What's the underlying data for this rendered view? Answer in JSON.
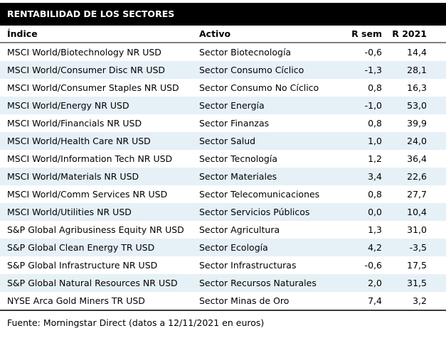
{
  "title": "RENTABILIDAD DE LOS SECTORES",
  "columns": {
    "indice": "Índice",
    "activo": "Activo",
    "r_sem": "R sem",
    "r_2021": "R 2021"
  },
  "footer": "Fuente: Morningstar Direct (datos a 12/11/2021 en euros)",
  "colors": {
    "title_bg": "#000000",
    "title_text": "#ffffff",
    "row_alt_bg": "#e6f0f7",
    "header_rule": "#808080",
    "bottom_rule": "#3a3a3a"
  },
  "rows": [
    {
      "indice": "MSCI World/Biotechnology NR USD",
      "activo": "Sector Biotecnología",
      "r_sem": "-0,6",
      "r_2021": "14,4"
    },
    {
      "indice": "MSCI World/Consumer Disc NR USD",
      "activo": "Sector Consumo Cíclico",
      "r_sem": "-1,3",
      "r_2021": "28,1"
    },
    {
      "indice": "MSCI World/Consumer Staples NR USD",
      "activo": "Sector Consumo No Cíclico",
      "r_sem": "0,8",
      "r_2021": "16,3"
    },
    {
      "indice": "MSCI World/Energy NR USD",
      "activo": "Sector Energía",
      "r_sem": "-1,0",
      "r_2021": "53,0"
    },
    {
      "indice": "MSCI World/Financials NR USD",
      "activo": "Sector Finanzas",
      "r_sem": "0,8",
      "r_2021": "39,9"
    },
    {
      "indice": "MSCI World/Health Care NR USD",
      "activo": "Sector Salud",
      "r_sem": "1,0",
      "r_2021": "24,0"
    },
    {
      "indice": "MSCI World/Information Tech NR USD",
      "activo": "Sector Tecnología",
      "r_sem": "1,2",
      "r_2021": "36,4"
    },
    {
      "indice": "MSCI World/Materials NR USD",
      "activo": "Sector Materiales",
      "r_sem": "3,4",
      "r_2021": "22,6"
    },
    {
      "indice": "MSCI World/Comm Services NR USD",
      "activo": "Sector Telecomunicaciones",
      "r_sem": "0,8",
      "r_2021": "27,7"
    },
    {
      "indice": "MSCI World/Utilities NR USD",
      "activo": "Sector Servicios Públicos",
      "r_sem": "0,0",
      "r_2021": "10,4"
    },
    {
      "indice": "S&P Global Agribusiness Equity NR USD",
      "activo": "Sector Agricultura",
      "r_sem": "1,3",
      "r_2021": "31,0"
    },
    {
      "indice": "S&P Global Clean Energy TR USD",
      "activo": "Sector Ecología",
      "r_sem": "4,2",
      "r_2021": "-3,5"
    },
    {
      "indice": "S&P Global Infrastructure NR USD",
      "activo": "Sector Infrastructuras",
      "r_sem": "-0,6",
      "r_2021": "17,5"
    },
    {
      "indice": "S&P Global Natural Resources NR USD",
      "activo": "Sector Recursos Naturales",
      "r_sem": "2,0",
      "r_2021": "31,5"
    },
    {
      "indice": "NYSE Arca Gold Miners TR USD",
      "activo": "Sector Minas de Oro",
      "r_sem": "7,4",
      "r_2021": "3,2"
    }
  ],
  "chart_data": {
    "type": "table",
    "title": "RENTABILIDAD DE LOS SECTORES",
    "columns": [
      "Índice",
      "Activo",
      "R sem",
      "R 2021"
    ],
    "rows": [
      [
        "MSCI World/Biotechnology NR USD",
        "Sector Biotecnología",
        -0.6,
        14.4
      ],
      [
        "MSCI World/Consumer Disc NR USD",
        "Sector Consumo Cíclico",
        -1.3,
        28.1
      ],
      [
        "MSCI World/Consumer Staples NR USD",
        "Sector Consumo No Cíclico",
        0.8,
        16.3
      ],
      [
        "MSCI World/Energy NR USD",
        "Sector Energía",
        -1.0,
        53.0
      ],
      [
        "MSCI World/Financials NR USD",
        "Sector Finanzas",
        0.8,
        39.9
      ],
      [
        "MSCI World/Health Care NR USD",
        "Sector Salud",
        1.0,
        24.0
      ],
      [
        "MSCI World/Information Tech NR USD",
        "Sector Tecnología",
        1.2,
        36.4
      ],
      [
        "MSCI World/Materials NR USD",
        "Sector Materiales",
        3.4,
        22.6
      ],
      [
        "MSCI World/Comm Services NR USD",
        "Sector Telecomunicaciones",
        0.8,
        27.7
      ],
      [
        "MSCI World/Utilities NR USD",
        "Sector Servicios Públicos",
        0.0,
        10.4
      ],
      [
        "S&P Global Agribusiness Equity NR USD",
        "Sector Agricultura",
        1.3,
        31.0
      ],
      [
        "S&P Global Clean Energy TR USD",
        "Sector Ecología",
        4.2,
        -3.5
      ],
      [
        "S&P Global Infrastructure NR USD",
        "Sector Infrastructuras",
        -0.6,
        17.5
      ],
      [
        "S&P Global Natural Resources NR USD",
        "Sector Recursos Naturales",
        2.0,
        31.5
      ],
      [
        "NYSE Arca Gold Miners TR USD",
        "Sector Minas de Oro",
        7.4,
        3.2
      ]
    ],
    "footnote": "Fuente: Morningstar Direct (datos a 12/11/2021 en euros)"
  }
}
